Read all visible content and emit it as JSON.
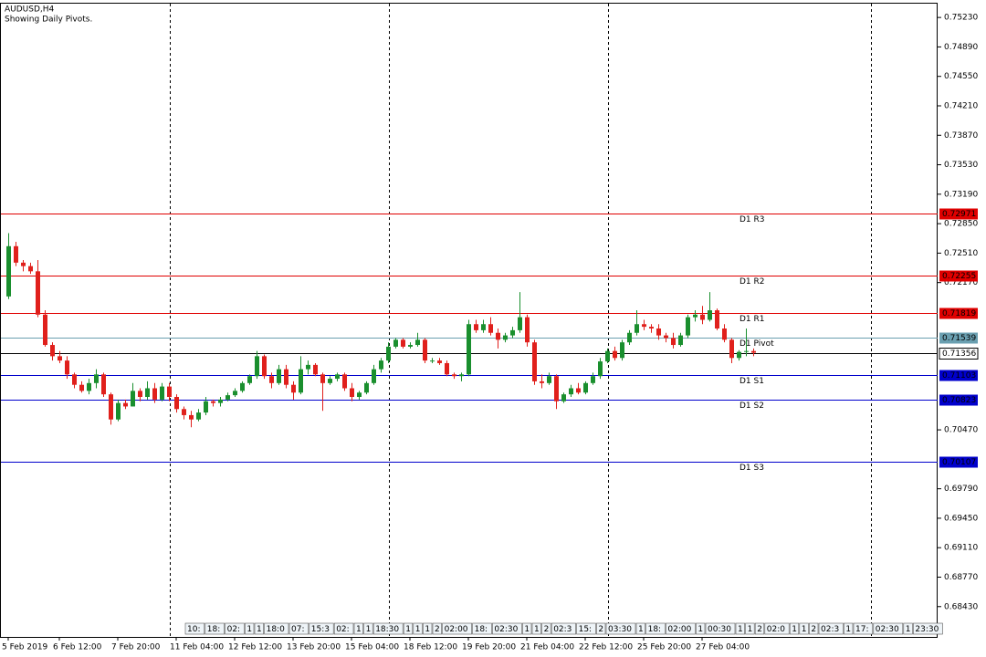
{
  "chart_data": {
    "type": "candlestick",
    "title": "AUDUSD,H4",
    "subtitle": "Showing Daily Pivots.",
    "up_color": "#1a8f2e",
    "down_color": "#e0201c",
    "categories": [
      "5 Feb 2019",
      null,
      null,
      null,
      null,
      null,
      null,
      "6 Feb 12:00",
      null,
      null,
      null,
      null,
      null,
      null,
      null,
      "7 Feb 20:00",
      null,
      null,
      null,
      null,
      null,
      null,
      null,
      "11 Feb 04:00",
      null,
      null,
      null,
      null,
      null,
      null,
      null,
      "12 Feb 12:00",
      null,
      null,
      null,
      null,
      null,
      null,
      null,
      "13 Feb 20:00",
      null,
      null,
      null,
      null,
      null,
      null,
      null,
      "15 Feb 04:00",
      null,
      null,
      null,
      null,
      null,
      null,
      null,
      "18 Feb 12:00",
      null,
      null,
      null,
      null,
      null,
      null,
      null,
      "19 Feb 20:00",
      null,
      null,
      null,
      null,
      null,
      null,
      null,
      "21 Feb 04:00",
      null,
      null,
      null,
      null,
      null,
      null,
      null,
      "22 Feb 12:00",
      null,
      null,
      null,
      null,
      null,
      null,
      null,
      "25 Feb 20:00",
      null,
      null,
      null,
      null,
      null,
      null,
      null,
      "27 Feb 04:00",
      null,
      null,
      null,
      null,
      null,
      null,
      null
    ],
    "open": [
      0.7201,
      0.7259,
      0.724,
      0.7236,
      0.723,
      0.718,
      0.7145,
      0.7132,
      0.7127,
      0.7111,
      0.7099,
      0.7092,
      0.7101,
      0.7111,
      0.7088,
      0.7059,
      0.7078,
      0.7074,
      0.7092,
      0.7085,
      0.7095,
      0.7082,
      0.7097,
      0.7085,
      0.7071,
      0.7064,
      0.7059,
      0.7067,
      0.708,
      0.7078,
      0.7082,
      0.7087,
      0.7092,
      0.7101,
      0.7109,
      0.7132,
      0.7109,
      0.7101,
      0.7117,
      0.7099,
      0.709,
      0.7117,
      0.7122,
      0.7111,
      0.7101,
      0.7106,
      0.7111,
      0.7095,
      0.7085,
      0.709,
      0.7101,
      0.7117,
      0.7127,
      0.7143,
      0.7151,
      0.7143,
      0.7145,
      0.7151,
      0.7127,
      0.7127,
      0.7124,
      0.7111,
      0.7109,
      0.7111,
      0.7169,
      0.7162,
      0.7169,
      0.7159,
      0.7151,
      0.7156,
      0.7162,
      0.7177,
      0.7148,
      0.7103,
      0.7101,
      0.7109,
      0.708,
      0.7088,
      0.7095,
      0.709,
      0.7101,
      0.7109,
      0.7126,
      0.7138,
      0.713,
      0.7148,
      0.7159,
      0.7169,
      0.7166,
      0.7164,
      0.7156,
      0.7153,
      0.7145,
      0.7156,
      0.7177,
      0.718,
      0.7174,
      0.7185,
      0.7164,
      0.7151,
      0.713,
      0.7137,
      0.7138
    ],
    "high": [
      0.7274,
      0.7264,
      0.7243,
      0.724,
      0.7243,
      0.7185,
      0.7148,
      0.7138,
      0.7132,
      0.7113,
      0.7103,
      0.7106,
      0.7117,
      0.7113,
      0.709,
      0.7082,
      0.7082,
      0.7101,
      0.7095,
      0.7103,
      0.7101,
      0.7101,
      0.7101,
      0.7088,
      0.7074,
      0.7069,
      0.7071,
      0.7085,
      0.7082,
      0.7085,
      0.709,
      0.7095,
      0.7103,
      0.7111,
      0.7138,
      0.7134,
      0.7113,
      0.7122,
      0.7122,
      0.7103,
      0.7132,
      0.7127,
      0.7124,
      0.7113,
      0.7109,
      0.7113,
      0.7113,
      0.7101,
      0.7092,
      0.7103,
      0.7122,
      0.713,
      0.7148,
      0.7153,
      0.7153,
      0.7148,
      0.7159,
      0.7153,
      0.713,
      0.713,
      0.7127,
      0.7113,
      0.7113,
      0.7174,
      0.7174,
      0.7174,
      0.7177,
      0.7164,
      0.7159,
      0.7166,
      0.7206,
      0.718,
      0.7151,
      0.7111,
      0.7113,
      0.7111,
      0.709,
      0.7099,
      0.7101,
      0.7103,
      0.7113,
      0.713,
      0.7141,
      0.7143,
      0.7151,
      0.7162,
      0.7185,
      0.7174,
      0.7169,
      0.7169,
      0.7159,
      0.7159,
      0.7159,
      0.718,
      0.7185,
      0.719,
      0.7206,
      0.7187,
      0.7169,
      0.7153,
      0.7139,
      0.7164,
      0.7141
    ],
    "low": [
      0.7198,
      0.7236,
      0.723,
      0.7227,
      0.7177,
      0.7143,
      0.7127,
      0.7124,
      0.7106,
      0.7095,
      0.709,
      0.7088,
      0.7095,
      0.7085,
      0.7053,
      0.7057,
      0.7071,
      0.7074,
      0.708,
      0.7082,
      0.7078,
      0.708,
      0.708,
      0.7067,
      0.7059,
      0.705,
      0.7057,
      0.7064,
      0.7074,
      0.7074,
      0.708,
      0.7085,
      0.709,
      0.7099,
      0.7106,
      0.7106,
      0.7095,
      0.7099,
      0.7095,
      0.7082,
      0.7088,
      0.7111,
      0.7109,
      0.7069,
      0.7099,
      0.7103,
      0.7092,
      0.708,
      0.7082,
      0.7088,
      0.7099,
      0.7113,
      0.7124,
      0.7141,
      0.7141,
      0.7141,
      0.7143,
      0.7124,
      0.7124,
      0.7122,
      0.7109,
      0.7106,
      0.7103,
      0.7109,
      0.7159,
      0.7159,
      0.7156,
      0.7141,
      0.7148,
      0.7153,
      0.7159,
      0.7143,
      0.7099,
      0.7095,
      0.7099,
      0.7071,
      0.7078,
      0.7085,
      0.7088,
      0.7088,
      0.7099,
      0.7106,
      0.7124,
      0.7127,
      0.7127,
      0.7145,
      0.7156,
      0.7162,
      0.7159,
      0.7151,
      0.7148,
      0.7141,
      0.7143,
      0.7153,
      0.7172,
      0.7169,
      0.7172,
      0.7162,
      0.7148,
      0.7124,
      0.7127,
      0.7132,
      0.7132
    ],
    "close": [
      0.7259,
      0.724,
      0.7236,
      0.723,
      0.718,
      0.7145,
      0.7132,
      0.7127,
      0.7111,
      0.7099,
      0.7092,
      0.7101,
      0.7111,
      0.7088,
      0.7059,
      0.7078,
      0.7074,
      0.7092,
      0.7085,
      0.7095,
      0.7082,
      0.7097,
      0.7085,
      0.7071,
      0.7064,
      0.7059,
      0.7067,
      0.708,
      0.7078,
      0.7082,
      0.7087,
      0.7092,
      0.7101,
      0.7109,
      0.7132,
      0.7109,
      0.7101,
      0.7117,
      0.7099,
      0.709,
      0.7117,
      0.7122,
      0.7111,
      0.7101,
      0.7106,
      0.7111,
      0.7095,
      0.7085,
      0.709,
      0.7101,
      0.7117,
      0.7127,
      0.7143,
      0.7151,
      0.7143,
      0.7145,
      0.7151,
      0.7127,
      0.7127,
      0.7124,
      0.7111,
      0.7109,
      0.7111,
      0.7169,
      0.7162,
      0.7169,
      0.7159,
      0.7151,
      0.7156,
      0.7162,
      0.7177,
      0.7148,
      0.7103,
      0.7101,
      0.7109,
      0.708,
      0.7088,
      0.7095,
      0.709,
      0.7101,
      0.7109,
      0.7126,
      0.7138,
      0.713,
      0.7148,
      0.7159,
      0.7169,
      0.7166,
      0.7164,
      0.7156,
      0.7153,
      0.7145,
      0.7156,
      0.7177,
      0.718,
      0.7174,
      0.7185,
      0.7164,
      0.7151,
      0.713,
      0.7137,
      0.7138,
      0.7136
    ],
    "ylim": [
      0.6808,
      0.754
    ],
    "yticks": [
      {
        "value": 0.7523,
        "label": "0.75230"
      },
      {
        "value": 0.7489,
        "label": "0.74890"
      },
      {
        "value": 0.7455,
        "label": "0.74550"
      },
      {
        "value": 0.7421,
        "label": "0.74210"
      },
      {
        "value": 0.7387,
        "label": "0.73870"
      },
      {
        "value": 0.7353,
        "label": "0.73530"
      },
      {
        "value": 0.7319,
        "label": "0.73190"
      },
      {
        "value": 0.7285,
        "label": "0.72850"
      },
      {
        "value": 0.7251,
        "label": "0.72510"
      },
      {
        "value": 0.7217,
        "label": "0.72170"
      },
      {
        "value": 0.7047,
        "label": "0.70470"
      },
      {
        "value": 0.6979,
        "label": "0.69790"
      },
      {
        "value": 0.6945,
        "label": "0.69450"
      },
      {
        "value": 0.6911,
        "label": "0.69110"
      },
      {
        "value": 0.6877,
        "label": "0.68770"
      },
      {
        "value": 0.6843,
        "label": "0.68430"
      }
    ],
    "levels": [
      {
        "name": "D1 R3",
        "value": 0.72971,
        "color": "#e00000"
      },
      {
        "name": "D1 R2",
        "value": 0.72255,
        "color": "#e00000"
      },
      {
        "name": "D1 R1",
        "value": 0.71819,
        "color": "#e00000"
      },
      {
        "name": "D1 Pivot",
        "value": 0.71539,
        "color": "#6a9fb0"
      },
      {
        "name": "D1 S1",
        "value": 0.71103,
        "color": "#0000cc"
      },
      {
        "name": "D1 S2",
        "value": 0.70823,
        "color": "#0000cc"
      },
      {
        "name": "D1 S3",
        "value": 0.70107,
        "color": "#0000cc"
      }
    ],
    "last_price": 0.71356,
    "time_tags": [
      "10:",
      "18:",
      "02:",
      "1",
      "1",
      "18:0",
      "07:",
      "15:3",
      "02:",
      "1",
      "1",
      "18:30",
      "1",
      "1",
      "1",
      "2",
      "02:00",
      "18:",
      "02:30",
      "1",
      "1",
      "2",
      "02:3",
      "15:",
      "2",
      "03:30",
      "1",
      "18:",
      "02:00",
      "1",
      "00:30",
      "1",
      "1",
      "2",
      "02:0",
      "1",
      "1",
      "2",
      "02:3",
      "1",
      "17:",
      "02:30",
      "1",
      "23:30"
    ]
  }
}
